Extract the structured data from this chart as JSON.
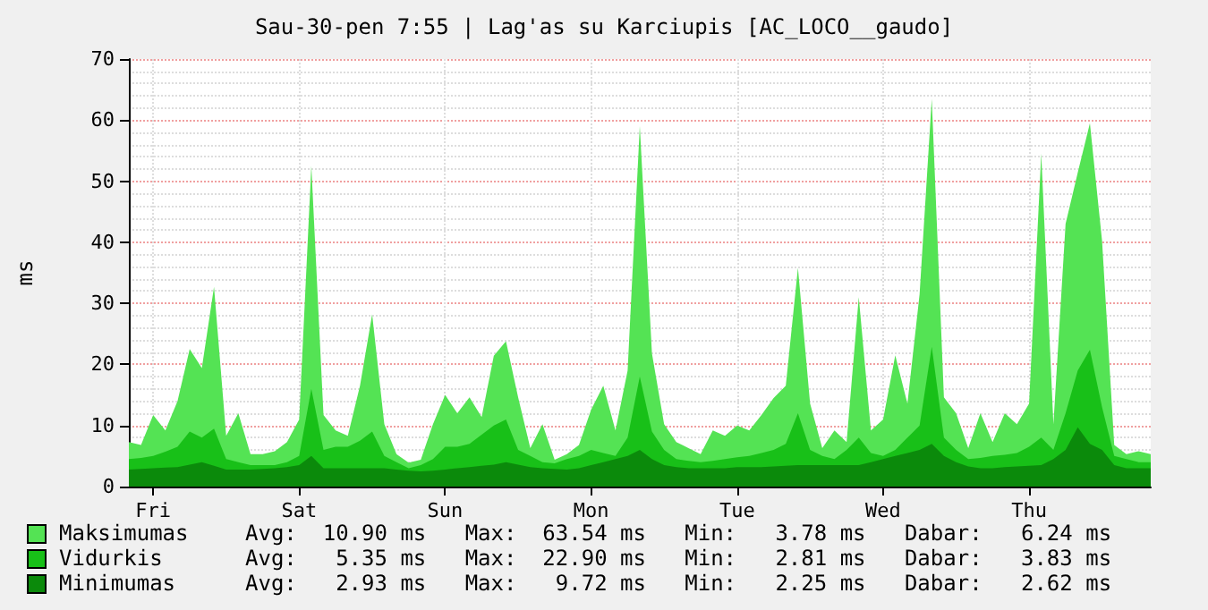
{
  "chart_data": {
    "type": "area",
    "title": "Sau-30-pen 7:55 | Lag'as su Karciupis [AC_LOCO__gaudo]",
    "ylabel": "ms",
    "categories": [
      null,
      null,
      "Fri",
      null,
      null,
      null,
      null,
      null,
      null,
      null,
      null,
      null,
      null,
      null,
      "Sat",
      null,
      null,
      null,
      null,
      null,
      null,
      null,
      null,
      null,
      null,
      null,
      "Sun",
      null,
      null,
      null,
      null,
      null,
      null,
      null,
      null,
      null,
      null,
      null,
      "Mon",
      null,
      null,
      null,
      null,
      null,
      null,
      null,
      null,
      null,
      null,
      null,
      "Tue",
      null,
      null,
      null,
      null,
      null,
      null,
      null,
      null,
      null,
      null,
      null,
      "Wed",
      null,
      null,
      null,
      null,
      null,
      null,
      null,
      null,
      null,
      null,
      null,
      "Thu",
      null,
      null,
      null,
      null,
      null,
      null,
      null,
      null,
      null,
      null
    ],
    "ylim": [
      0,
      70
    ],
    "yticks": [
      0,
      10,
      20,
      30,
      40,
      50,
      60,
      70
    ],
    "grid": true,
    "legend": "bottom left",
    "annotations": [
      "Avg:  10.90 ms   Max:  63.54 ms   Min:   3.78 ms   Dabar:   6.24 ms",
      "Avg:   5.35 ms   Max:  22.90 ms   Min:   2.81 ms   Dabar:   3.83 ms",
      "Avg:   2.93 ms   Max:   9.72 ms   Min:   2.25 ms   Dabar:   2.62 ms"
    ],
    "series": [
      {
        "name": "Maksimumas",
        "color": "#54e354",
        "values": [
          7.3,
          6.8,
          11.7,
          9.2,
          14,
          22.5,
          19.4,
          32.7,
          8.3,
          12,
          5.3,
          5.3,
          5.8,
          7.3,
          11,
          52.5,
          11.7,
          9.2,
          8.3,
          16.5,
          28.2,
          10.2,
          5.3,
          3.9,
          4.4,
          10.2,
          15,
          12,
          14.6,
          11.4,
          21.4,
          23.8,
          14.6,
          6.3,
          10.2,
          4.4,
          5.3,
          6.8,
          12.6,
          16.5,
          9.2,
          19,
          59,
          21.8,
          10.2,
          7.3,
          6.3,
          5.3,
          9.2,
          8.3,
          10,
          9.2,
          11.7,
          14.5,
          16.5,
          35.8,
          13.6,
          6.3,
          9.2,
          7.3,
          31,
          9.2,
          11,
          21.5,
          13.6,
          31.5,
          63.5,
          14.6,
          12,
          6.3,
          12,
          7.3,
          12,
          10.2,
          13.6,
          54.5,
          10.2,
          43,
          51.4,
          59.5,
          40.2,
          6.8,
          5.3,
          5.8,
          5.3
        ]
      },
      {
        "name": "Vidurkis",
        "color": "#18c018",
        "values": [
          4.5,
          4.7,
          5,
          5.7,
          6.5,
          9,
          8,
          9.5,
          4.5,
          4,
          3.5,
          3.5,
          3.5,
          4,
          5,
          16,
          6,
          6.5,
          6.5,
          7.5,
          9,
          5,
          4,
          3,
          3.5,
          4.5,
          6.5,
          6.5,
          7,
          8.5,
          10,
          11,
          6,
          5,
          4,
          3.8,
          4.5,
          5,
          6,
          5.5,
          5,
          8,
          18,
          9,
          6,
          4.5,
          4.2,
          4,
          4.2,
          4.5,
          4.8,
          5,
          5.5,
          6,
          7,
          12,
          6,
          5,
          4.5,
          6,
          8,
          5.5,
          5,
          6,
          8,
          10,
          22.9,
          8,
          6,
          4.5,
          4.7,
          5,
          5.2,
          5.5,
          6.5,
          8,
          6,
          12,
          19,
          22.4,
          13,
          5,
          4.5,
          4,
          4
        ]
      },
      {
        "name": "Minimumas",
        "color": "#0b8a0b",
        "values": [
          2.8,
          2.9,
          3,
          3.1,
          3.2,
          3.6,
          4,
          3.4,
          2.8,
          2.8,
          2.8,
          2.9,
          3,
          3.2,
          3.5,
          5,
          3,
          3,
          3,
          3,
          3,
          3,
          2.8,
          2.6,
          2.5,
          2.6,
          2.8,
          3,
          3.2,
          3.4,
          3.6,
          4,
          3.6,
          3.2,
          3,
          2.9,
          2.8,
          3,
          3.5,
          4,
          4.5,
          5,
          6,
          4.5,
          3.5,
          3.2,
          3,
          3,
          3,
          3,
          3.2,
          3.2,
          3.2,
          3.3,
          3.4,
          3.5,
          3.5,
          3.5,
          3.5,
          3.5,
          3.5,
          4,
          4.5,
          5,
          5.5,
          6,
          7,
          5,
          4,
          3.3,
          3,
          3,
          3.2,
          3.3,
          3.4,
          3.5,
          4.5,
          6,
          9.7,
          7,
          6,
          3.5,
          3,
          3,
          3
        ]
      }
    ]
  }
}
